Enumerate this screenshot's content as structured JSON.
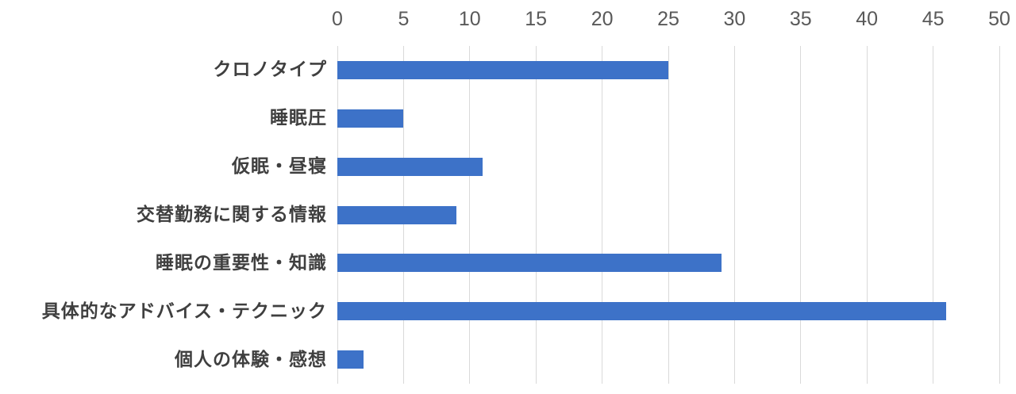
{
  "chart_data": {
    "type": "bar",
    "orientation": "horizontal",
    "title": "",
    "xlabel": "",
    "ylabel": "",
    "categories": [
      "クロノタイプ",
      "睡眠圧",
      "仮眠・昼寝",
      "交替勤務に関する情報",
      "睡眠の重要性・知識",
      "具体的なアドバイス・テクニック",
      "個人の体験・感想"
    ],
    "values": [
      25,
      5,
      11,
      9,
      29,
      46,
      2
    ],
    "xlim": [
      0,
      50
    ],
    "x_ticks": [
      0,
      5,
      10,
      15,
      20,
      25,
      30,
      35,
      40,
      45,
      50
    ],
    "grid": true,
    "legend": "none",
    "colors": {
      "bar": "#3d72c8",
      "gridline": "#d9d9d9",
      "tick_text": "#595959",
      "category_text": "#3f3f3f",
      "background": "#ffffff"
    }
  }
}
